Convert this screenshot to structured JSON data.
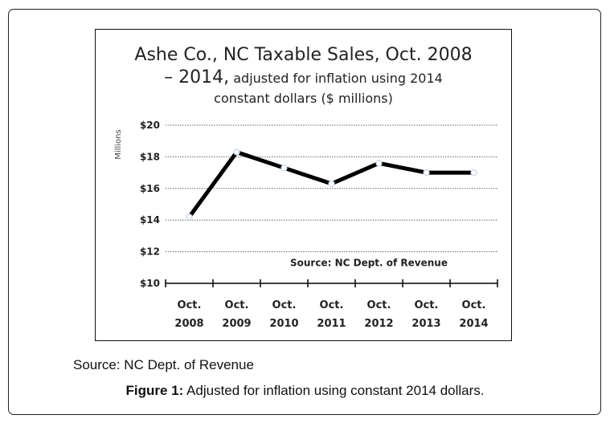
{
  "chart_data": {
    "type": "line",
    "title_line1": "Ashe Co., NC Taxable Sales, Oct. 2008",
    "title_line2_big": "– 2014,",
    "title_line2_small": "adjusted for inflation using 2014",
    "title_line3": "constant dollars ($ millions)",
    "ylabel": "Millions",
    "categories": [
      "Oct.\n2008",
      "Oct.\n2009",
      "Oct.\n2010",
      "Oct.\n2011",
      "Oct.\n2012",
      "Oct.\n2013",
      "Oct.\n2014"
    ],
    "values": [
      14.2,
      18.3,
      17.3,
      16.3,
      17.6,
      17.0,
      17.0
    ],
    "ylim": [
      10,
      20
    ],
    "yticks": [
      10,
      12,
      14,
      16,
      18,
      20
    ],
    "ytick_labels": [
      "$10",
      "$12",
      "$14",
      "$16",
      "$18",
      "$20"
    ],
    "grid": true,
    "annotation": "Source: NC Dept. of Revenue",
    "line_color": "#000000",
    "marker_color": "#c9d6e8"
  },
  "captions": {
    "source": "Source: NC Dept. of Revenue",
    "figure_label": "Figure 1:",
    "figure_text": " Adjusted for inflation using constant 2014 dollars."
  }
}
